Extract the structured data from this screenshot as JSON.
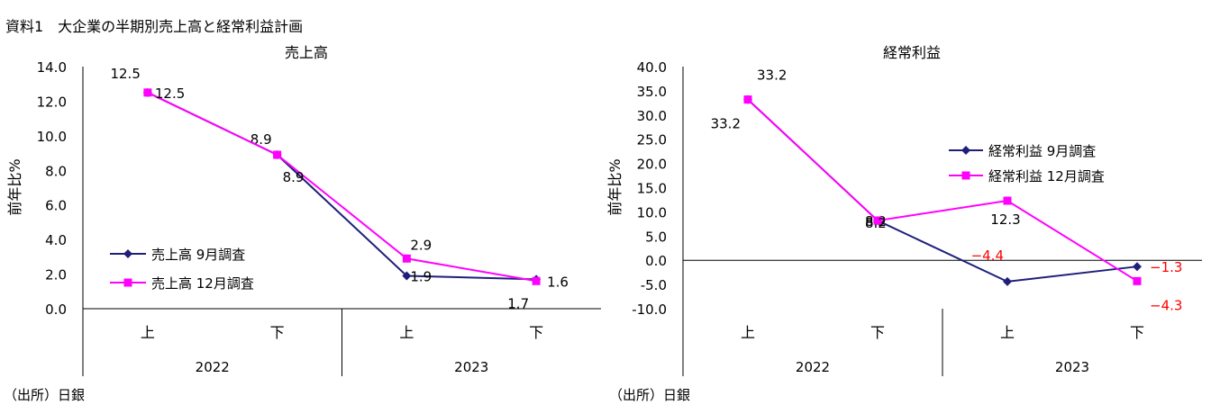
{
  "page_title": "資料1　大企業の半期別売上高と経常利益計画",
  "chart_data": [
    {
      "type": "line",
      "title": "売上高",
      "ylabel": "前年比%",
      "ylim": [
        0,
        14
      ],
      "y_ticks": [
        "0.0",
        "2.0",
        "4.0",
        "6.0",
        "8.0",
        "10.0",
        "12.0",
        "14.0"
      ],
      "categories": [
        "上",
        "下",
        "上",
        "下"
      ],
      "years": [
        "2022",
        "2023"
      ],
      "legend_position": "bottom-left",
      "series": [
        {
          "name": "売上高 9月調査",
          "color": "#1f1f7a",
          "marker": "diamond",
          "values": [
            12.5,
            8.9,
            1.9,
            1.7
          ],
          "labels": [
            "12.5",
            "8.9",
            "1.9",
            "1.7"
          ]
        },
        {
          "name": "売上高 12月調査",
          "color": "#ff00ff",
          "marker": "square",
          "values": [
            12.5,
            8.9,
            2.9,
            1.6
          ],
          "labels": [
            "12.5",
            "8.9",
            "2.9",
            "1.6"
          ]
        }
      ]
    },
    {
      "type": "line",
      "title": "経常利益",
      "ylabel": "前年比%",
      "ylim": [
        -10,
        40
      ],
      "y_ticks": [
        "-10.0",
        "-5.0",
        "0.0",
        "5.0",
        "10.0",
        "15.0",
        "20.0",
        "25.0",
        "30.0",
        "35.0",
        "40.0"
      ],
      "categories": [
        "上",
        "下",
        "上",
        "下"
      ],
      "years": [
        "2022",
        "2023"
      ],
      "legend_position": "right",
      "series": [
        {
          "name": "経常利益 9月調査",
          "color": "#1f1f7a",
          "marker": "diamond",
          "values": [
            33.2,
            8.2,
            -4.4,
            -1.3
          ],
          "labels": [
            "33.2",
            "8.2",
            "−4.4",
            "−1.3"
          ]
        },
        {
          "name": "経常利益 12月調査",
          "color": "#ff00ff",
          "marker": "square",
          "values": [
            33.2,
            8.2,
            12.3,
            -4.3
          ],
          "labels": [
            "33.2",
            "8.2",
            "12.3",
            "−4.3"
          ]
        }
      ]
    }
  ],
  "source": "（出所）日銀"
}
